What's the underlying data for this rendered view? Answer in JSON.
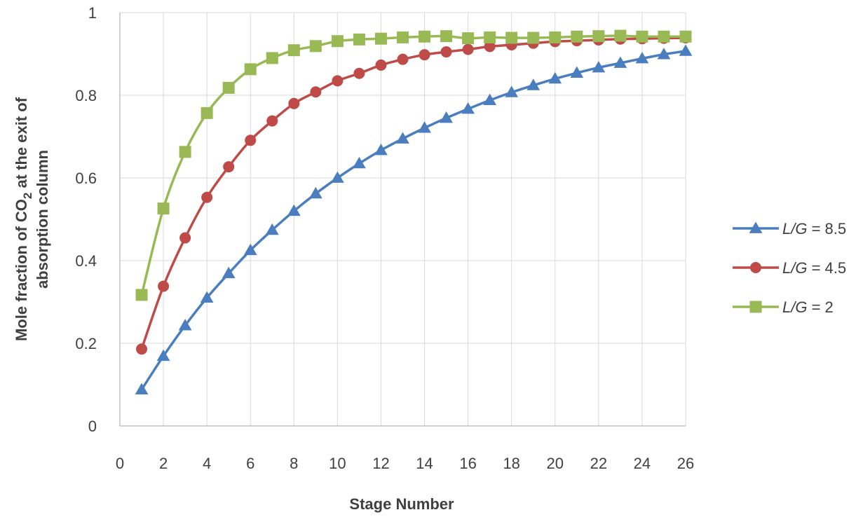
{
  "chart_data": {
    "type": "line",
    "xlabel": "Stage Number",
    "ylabel_line1": "Mole fraction of CO",
    "ylabel_sub": "2",
    "ylabel_line1_rest": "  at the exit of",
    "ylabel_line2": "absorption column",
    "xlim": [
      0,
      26
    ],
    "ylim": [
      0,
      1
    ],
    "xticks": [
      "0",
      "2",
      "4",
      "6",
      "8",
      "10",
      "12",
      "14",
      "16",
      "18",
      "20",
      "22",
      "24",
      "26"
    ],
    "yticks": [
      "0",
      "0.2",
      "0.4",
      "0.6",
      "0.8",
      "1"
    ],
    "grid": true,
    "legend_position": "right",
    "x": [
      1,
      2,
      3,
      4,
      5,
      6,
      7,
      8,
      9,
      10,
      11,
      12,
      13,
      14,
      15,
      16,
      17,
      18,
      19,
      20,
      21,
      22,
      23,
      24,
      25,
      26
    ],
    "series": [
      {
        "legend_italic": "L/G",
        "legend_rest": " = 8.5",
        "color": "#4a7ebf",
        "marker": "triangle",
        "values": [
          0.088,
          0.169,
          0.243,
          0.31,
          0.369,
          0.425,
          0.474,
          0.52,
          0.562,
          0.6,
          0.635,
          0.667,
          0.695,
          0.721,
          0.745,
          0.767,
          0.788,
          0.807,
          0.824,
          0.84,
          0.854,
          0.867,
          0.878,
          0.889,
          0.899,
          0.907
        ]
      },
      {
        "legend_italic": "L/G",
        "legend_rest": " = 4.5",
        "color": "#be4b48",
        "marker": "circle",
        "values": [
          0.186,
          0.338,
          0.455,
          0.553,
          0.627,
          0.691,
          0.738,
          0.78,
          0.808,
          0.835,
          0.853,
          0.873,
          0.887,
          0.898,
          0.905,
          0.911,
          0.918,
          0.922,
          0.926,
          0.93,
          0.932,
          0.934,
          0.936,
          0.937,
          0.938,
          0.939
        ]
      },
      {
        "legend_italic": "L/G",
        "legend_rest": " = 2",
        "color": "#98b954",
        "marker": "square",
        "values": [
          0.317,
          0.526,
          0.663,
          0.757,
          0.818,
          0.863,
          0.89,
          0.909,
          0.919,
          0.931,
          0.935,
          0.937,
          0.94,
          0.942,
          0.943,
          0.938,
          0.94,
          0.939,
          0.939,
          0.94,
          0.942,
          0.943,
          0.944,
          0.942,
          0.942,
          0.942
        ]
      }
    ]
  }
}
